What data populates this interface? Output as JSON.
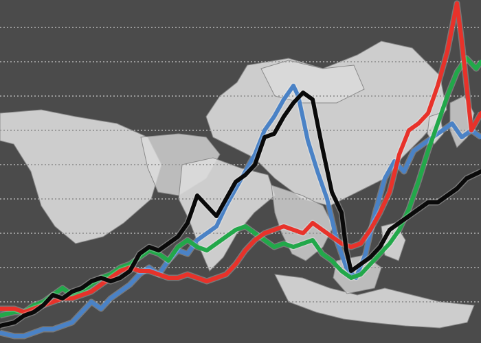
{
  "chart_data": {
    "type": "line",
    "title": "",
    "xlabel": "",
    "ylabel": "",
    "xlim": [
      0,
      100
    ],
    "ylim": [
      0,
      100
    ],
    "grid": true,
    "legend": "none",
    "background_color": "#4b4b4b",
    "gridline_color": "#9a9a9a",
    "map_fill_color": "#dcdcdc",
    "series": [
      {
        "color": "#4a82c6",
        "points": [
          [
            0,
            3
          ],
          [
            3,
            2
          ],
          [
            5,
            2
          ],
          [
            7,
            3
          ],
          [
            9,
            4
          ],
          [
            11,
            4
          ],
          [
            13,
            5
          ],
          [
            15,
            6
          ],
          [
            17,
            9
          ],
          [
            19,
            12
          ],
          [
            21,
            10
          ],
          [
            23,
            13
          ],
          [
            25,
            15
          ],
          [
            27,
            17
          ],
          [
            29,
            20
          ],
          [
            31,
            22
          ],
          [
            33,
            20
          ],
          [
            35,
            24
          ],
          [
            37,
            27
          ],
          [
            39,
            26
          ],
          [
            41,
            30
          ],
          [
            43,
            32
          ],
          [
            45,
            34
          ],
          [
            47,
            40
          ],
          [
            49,
            45
          ],
          [
            51,
            50
          ],
          [
            53,
            55
          ],
          [
            55,
            62
          ],
          [
            57,
            66
          ],
          [
            59,
            71
          ],
          [
            61,
            75
          ],
          [
            62,
            72
          ],
          [
            64,
            59
          ],
          [
            66,
            50
          ],
          [
            68,
            42
          ],
          [
            70,
            30
          ],
          [
            72,
            22
          ],
          [
            74,
            19
          ],
          [
            76,
            26
          ],
          [
            78,
            38
          ],
          [
            80,
            48
          ],
          [
            82,
            53
          ],
          [
            84,
            50
          ],
          [
            86,
            56
          ],
          [
            88,
            58
          ],
          [
            90,
            60
          ],
          [
            92,
            62
          ],
          [
            94,
            64
          ],
          [
            96,
            60
          ],
          [
            98,
            62
          ],
          [
            100,
            60
          ]
        ]
      },
      {
        "color": "#22a84a",
        "points": [
          [
            0,
            8
          ],
          [
            3,
            9
          ],
          [
            5,
            9
          ],
          [
            7,
            11
          ],
          [
            9,
            12
          ],
          [
            11,
            14
          ],
          [
            13,
            16
          ],
          [
            15,
            14
          ],
          [
            17,
            15
          ],
          [
            19,
            17
          ],
          [
            21,
            19
          ],
          [
            23,
            20
          ],
          [
            25,
            22
          ],
          [
            27,
            23
          ],
          [
            29,
            25
          ],
          [
            31,
            27
          ],
          [
            33,
            26
          ],
          [
            35,
            24
          ],
          [
            37,
            28
          ],
          [
            39,
            30
          ],
          [
            41,
            28
          ],
          [
            43,
            27
          ],
          [
            45,
            29
          ],
          [
            47,
            31
          ],
          [
            49,
            33
          ],
          [
            51,
            34
          ],
          [
            53,
            32
          ],
          [
            55,
            30
          ],
          [
            57,
            28
          ],
          [
            59,
            29
          ],
          [
            61,
            28
          ],
          [
            63,
            29
          ],
          [
            65,
            30
          ],
          [
            67,
            26
          ],
          [
            69,
            24
          ],
          [
            71,
            21
          ],
          [
            73,
            19
          ],
          [
            75,
            20
          ],
          [
            77,
            23
          ],
          [
            79,
            26
          ],
          [
            81,
            29
          ],
          [
            83,
            33
          ],
          [
            85,
            39
          ],
          [
            87,
            47
          ],
          [
            89,
            56
          ],
          [
            91,
            64
          ],
          [
            93,
            72
          ],
          [
            95,
            79
          ],
          [
            97,
            83
          ],
          [
            99,
            80
          ],
          [
            100,
            82
          ]
        ]
      },
      {
        "color": "#e8322a",
        "points": [
          [
            0,
            10
          ],
          [
            3,
            10
          ],
          [
            5,
            9
          ],
          [
            7,
            10
          ],
          [
            9,
            11
          ],
          [
            11,
            12
          ],
          [
            13,
            13
          ],
          [
            15,
            13
          ],
          [
            17,
            14
          ],
          [
            19,
            15
          ],
          [
            21,
            17
          ],
          [
            23,
            19
          ],
          [
            25,
            21
          ],
          [
            27,
            22
          ],
          [
            29,
            21
          ],
          [
            31,
            21
          ],
          [
            33,
            20
          ],
          [
            35,
            19
          ],
          [
            37,
            19
          ],
          [
            39,
            20
          ],
          [
            41,
            19
          ],
          [
            43,
            18
          ],
          [
            45,
            19
          ],
          [
            47,
            20
          ],
          [
            49,
            23
          ],
          [
            51,
            27
          ],
          [
            53,
            30
          ],
          [
            55,
            32
          ],
          [
            57,
            33
          ],
          [
            59,
            34
          ],
          [
            61,
            33
          ],
          [
            63,
            32
          ],
          [
            65,
            35
          ],
          [
            67,
            33
          ],
          [
            69,
            31
          ],
          [
            71,
            29
          ],
          [
            73,
            28
          ],
          [
            75,
            29
          ],
          [
            77,
            33
          ],
          [
            79,
            38
          ],
          [
            81,
            44
          ],
          [
            83,
            55
          ],
          [
            85,
            62
          ],
          [
            87,
            64
          ],
          [
            89,
            67
          ],
          [
            91,
            75
          ],
          [
            93,
            85
          ],
          [
            95,
            99
          ],
          [
            96,
            88
          ],
          [
            98,
            62
          ],
          [
            100,
            67
          ]
        ]
      },
      {
        "color": "#0a0a0a",
        "points": [
          [
            0,
            5
          ],
          [
            3,
            6
          ],
          [
            5,
            8
          ],
          [
            7,
            9
          ],
          [
            9,
            11
          ],
          [
            11,
            14
          ],
          [
            13,
            13
          ],
          [
            15,
            15
          ],
          [
            17,
            16
          ],
          [
            19,
            18
          ],
          [
            21,
            19
          ],
          [
            23,
            18
          ],
          [
            25,
            19
          ],
          [
            27,
            21
          ],
          [
            29,
            26
          ],
          [
            31,
            28
          ],
          [
            33,
            27
          ],
          [
            35,
            29
          ],
          [
            37,
            31
          ],
          [
            39,
            35
          ],
          [
            41,
            43
          ],
          [
            43,
            40
          ],
          [
            45,
            37
          ],
          [
            47,
            42
          ],
          [
            49,
            47
          ],
          [
            51,
            49
          ],
          [
            53,
            52
          ],
          [
            55,
            60
          ],
          [
            57,
            61
          ],
          [
            59,
            66
          ],
          [
            61,
            70
          ],
          [
            63,
            73
          ],
          [
            65,
            71
          ],
          [
            67,
            57
          ],
          [
            69,
            44
          ],
          [
            71,
            38
          ],
          [
            72,
            27
          ],
          [
            73,
            21
          ],
          [
            75,
            23
          ],
          [
            77,
            25
          ],
          [
            79,
            28
          ],
          [
            81,
            33
          ],
          [
            83,
            35
          ],
          [
            85,
            37
          ],
          [
            87,
            39
          ],
          [
            89,
            41
          ],
          [
            91,
            41
          ],
          [
            93,
            43
          ],
          [
            95,
            45
          ],
          [
            97,
            48
          ],
          [
            100,
            50
          ]
        ]
      }
    ]
  }
}
